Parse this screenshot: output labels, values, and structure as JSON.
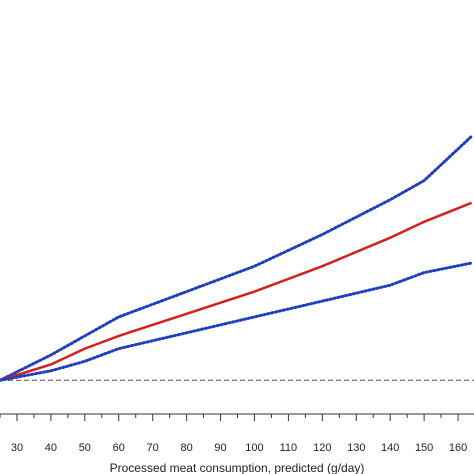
{
  "chart_data": {
    "type": "line",
    "x_label": "Processed meat consumption, predicted (g/day)",
    "x": [
      25,
      40,
      50,
      60,
      80,
      100,
      120,
      140,
      150,
      164
    ],
    "series": [
      {
        "color": "#1f3fbf",
        "style": "dotted",
        "values": [
          1.0,
          1.08,
          1.14,
          1.2,
          1.28,
          1.36,
          1.46,
          1.57,
          1.63,
          1.77
        ]
      },
      {
        "color": "#d42020",
        "style": "solid",
        "values": [
          1.0,
          1.05,
          1.1,
          1.14,
          1.21,
          1.28,
          1.36,
          1.45,
          1.5,
          1.56
        ]
      },
      {
        "color": "#1f3fbf",
        "style": "dotted",
        "values": [
          1.0,
          1.03,
          1.06,
          1.1,
          1.15,
          1.2,
          1.25,
          1.3,
          1.34,
          1.37
        ]
      }
    ],
    "reference_line": 1,
    "xlim": [
      25,
      164.7
    ],
    "ylim": [
      0.9,
      2.2
    ],
    "xticks": [
      30,
      40,
      50,
      60,
      70,
      80,
      90,
      100,
      110,
      120,
      130,
      140,
      150,
      160
    ],
    "xminorticks": [
      25,
      35,
      45,
      55,
      65,
      75,
      85,
      95,
      105,
      115,
      125,
      135,
      145,
      155
    ]
  }
}
